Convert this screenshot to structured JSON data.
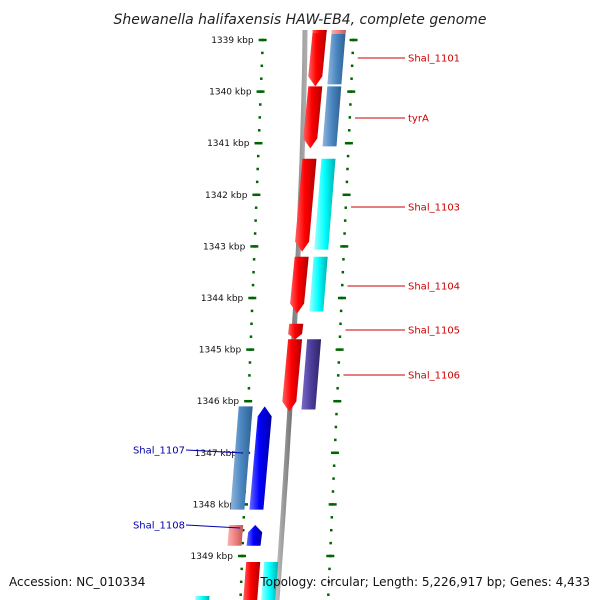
{
  "title": "Shewanella halifaxensis HAW-EB4, complete genome",
  "footer": {
    "accession": "Accession: NC_010334",
    "topology": "Topology: circular; Length: 5,226,917 bp; Genes: 4,433"
  },
  "colors": {
    "forward_gene": "#ff0000",
    "forward_cds_blue": "#4a86c0",
    "forward_cds_cyan": "#00ffff",
    "forward_cds_purple": "#4b3d99",
    "reverse_gene": "#0000ff",
    "reverse_cds_blue": "#4a86c0",
    "reverse_gene_pink": "#f08080",
    "label_forward": "#cc0000",
    "label_reverse": "#0000aa",
    "ruler_dash": "#006400",
    "backbone": "#888888"
  },
  "ruler": {
    "unit": "kbp",
    "ticks": [
      "1339 kbp",
      "1340 kbp",
      "1341 kbp",
      "1342 kbp",
      "1343 kbp",
      "1344 kbp",
      "1345 kbp",
      "1346 kbp",
      "1347 kbp",
      "1348 kbp",
      "1349 kbp"
    ]
  },
  "genes": [
    {
      "name": "Shal_1101",
      "strand": "forward",
      "start_kbp": 1338.7,
      "end_kbp": 1339.9,
      "cds_color": "forward_cds_blue"
    },
    {
      "name": "tyrA",
      "strand": "forward",
      "start_kbp": 1339.9,
      "end_kbp": 1341.1,
      "cds_color": "forward_cds_blue"
    },
    {
      "name": "Shal_1103",
      "strand": "forward",
      "start_kbp": 1341.3,
      "end_kbp": 1343.1,
      "cds_color": "forward_cds_cyan"
    },
    {
      "name": "Shal_1104",
      "strand": "forward",
      "start_kbp": 1343.2,
      "end_kbp": 1344.3,
      "cds_color": "forward_cds_cyan"
    },
    {
      "name": "Shal_1105",
      "strand": "forward",
      "start_kbp": 1344.5,
      "end_kbp": 1344.8,
      "cds_color": null
    },
    {
      "name": "Shal_1106",
      "strand": "forward",
      "start_kbp": 1344.8,
      "end_kbp": 1346.2,
      "cds_color": "forward_cds_purple"
    },
    {
      "name": "Shal_1107",
      "strand": "reverse",
      "start_kbp": 1346.1,
      "end_kbp": 1348.1,
      "cds_color": "reverse_cds_blue"
    },
    {
      "name": "Shal_1108",
      "strand": "reverse",
      "start_kbp": 1348.4,
      "end_kbp": 1348.8,
      "cds_color": "reverse_gene_pink"
    }
  ]
}
